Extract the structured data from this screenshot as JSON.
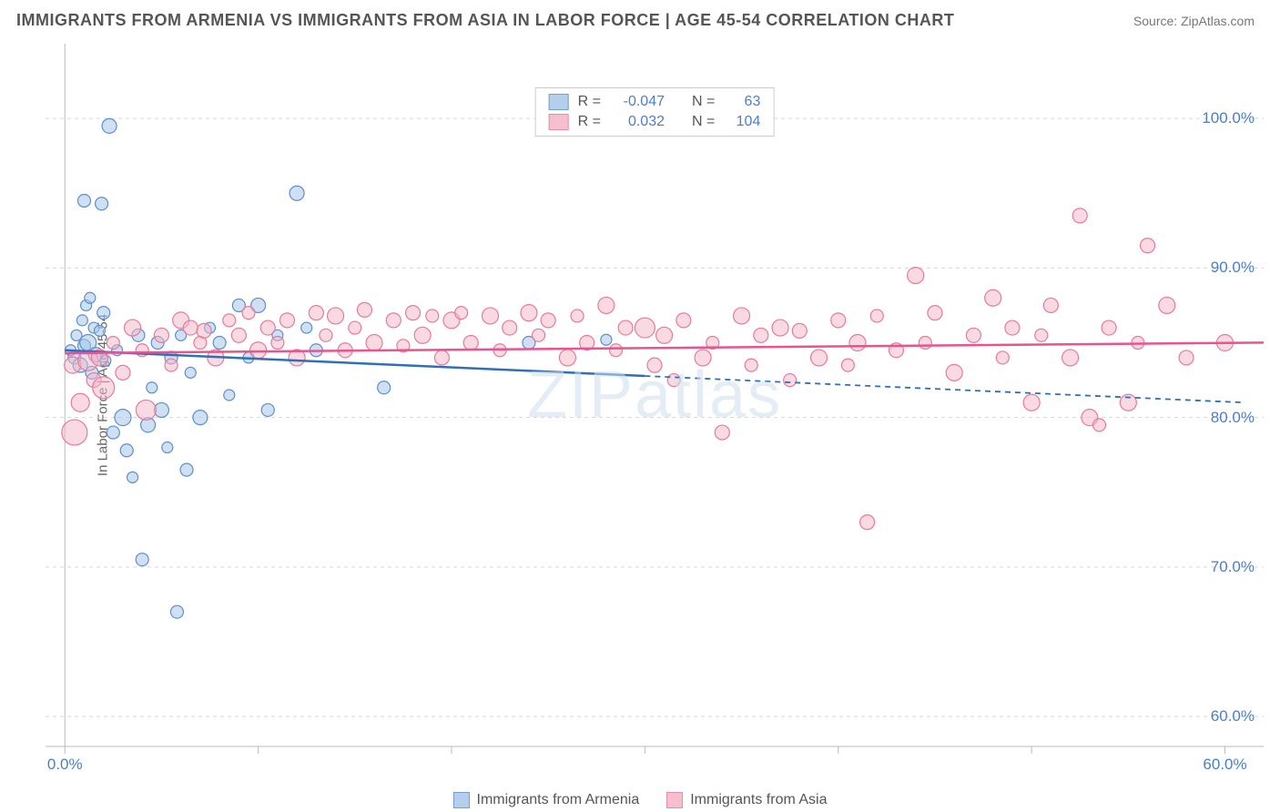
{
  "title": "IMMIGRANTS FROM ARMENIA VS IMMIGRANTS FROM ASIA IN LABOR FORCE | AGE 45-54 CORRELATION CHART",
  "source": "Source: ZipAtlas.com",
  "watermark": "ZIPatlas",
  "y_axis": {
    "label": "In Labor Force | Age 45-54",
    "ticks": [
      60.0,
      70.0,
      80.0,
      90.0,
      100.0
    ],
    "tick_labels": [
      "60.0%",
      "70.0%",
      "80.0%",
      "90.0%",
      "100.0%"
    ],
    "min": 58,
    "max": 105
  },
  "x_axis": {
    "ticks": [
      0.0,
      60.0
    ],
    "tick_labels": [
      "0.0%",
      "60.0%"
    ],
    "minor_ticks": [
      10,
      20,
      30,
      40,
      50
    ],
    "min": -1,
    "max": 62
  },
  "grid_color": "#d8d8d8",
  "axis_color": "#bbbbbb",
  "background_color": "#ffffff",
  "label_color": "#4a7fc8",
  "series": [
    {
      "name": "Immigrants from Armenia",
      "fill": "#a7c7e8",
      "stroke": "#5b8fd0",
      "fill_opacity": 0.55,
      "line_color": "#2f6fb8",
      "trend": {
        "y_start": 84.5,
        "y_end": 81.0,
        "solid_until": 30
      },
      "stats": {
        "R": "-0.047",
        "N": "63"
      },
      "points": [
        {
          "x": 0.3,
          "y": 84.5,
          "r": 6
        },
        {
          "x": 0.5,
          "y": 84.0,
          "r": 7
        },
        {
          "x": 0.6,
          "y": 85.5,
          "r": 6
        },
        {
          "x": 0.8,
          "y": 83.5,
          "r": 8
        },
        {
          "x": 0.9,
          "y": 86.5,
          "r": 6
        },
        {
          "x": 1.0,
          "y": 84.8,
          "r": 7
        },
        {
          "x": 1.1,
          "y": 87.5,
          "r": 6
        },
        {
          "x": 1.2,
          "y": 85.0,
          "r": 9
        },
        {
          "x": 1.3,
          "y": 88.0,
          "r": 6
        },
        {
          "x": 1.4,
          "y": 83.0,
          "r": 7
        },
        {
          "x": 1.5,
          "y": 86.0,
          "r": 6
        },
        {
          "x": 1.6,
          "y": 84.2,
          "r": 8
        },
        {
          "x": 1.8,
          "y": 85.8,
          "r": 6
        },
        {
          "x": 2.0,
          "y": 87.0,
          "r": 7
        },
        {
          "x": 2.1,
          "y": 83.8,
          "r": 6
        },
        {
          "x": 2.3,
          "y": 99.5,
          "r": 8
        },
        {
          "x": 1.0,
          "y": 94.5,
          "r": 7
        },
        {
          "x": 1.9,
          "y": 94.3,
          "r": 7
        },
        {
          "x": 2.5,
          "y": 79.0,
          "r": 7
        },
        {
          "x": 2.7,
          "y": 84.5,
          "r": 6
        },
        {
          "x": 3.0,
          "y": 80.0,
          "r": 9
        },
        {
          "x": 3.2,
          "y": 77.8,
          "r": 7
        },
        {
          "x": 3.5,
          "y": 76.0,
          "r": 6
        },
        {
          "x": 3.8,
          "y": 85.5,
          "r": 7
        },
        {
          "x": 4.0,
          "y": 70.5,
          "r": 7
        },
        {
          "x": 4.3,
          "y": 79.5,
          "r": 8
        },
        {
          "x": 4.5,
          "y": 82.0,
          "r": 6
        },
        {
          "x": 4.8,
          "y": 85.0,
          "r": 7
        },
        {
          "x": 5.0,
          "y": 80.5,
          "r": 8
        },
        {
          "x": 5.3,
          "y": 78.0,
          "r": 6
        },
        {
          "x": 5.5,
          "y": 84.0,
          "r": 7
        },
        {
          "x": 5.8,
          "y": 67.0,
          "r": 7
        },
        {
          "x": 6.0,
          "y": 85.5,
          "r": 6
        },
        {
          "x": 6.3,
          "y": 76.5,
          "r": 7
        },
        {
          "x": 6.5,
          "y": 83.0,
          "r": 6
        },
        {
          "x": 7.0,
          "y": 80.0,
          "r": 8
        },
        {
          "x": 7.5,
          "y": 86.0,
          "r": 6
        },
        {
          "x": 8.0,
          "y": 85.0,
          "r": 7
        },
        {
          "x": 8.5,
          "y": 81.5,
          "r": 6
        },
        {
          "x": 9.0,
          "y": 87.5,
          "r": 7
        },
        {
          "x": 9.5,
          "y": 84.0,
          "r": 6
        },
        {
          "x": 10.0,
          "y": 87.5,
          "r": 8
        },
        {
          "x": 10.5,
          "y": 80.5,
          "r": 7
        },
        {
          "x": 11.0,
          "y": 85.5,
          "r": 6
        },
        {
          "x": 12.0,
          "y": 95.0,
          "r": 8
        },
        {
          "x": 12.5,
          "y": 86.0,
          "r": 6
        },
        {
          "x": 13.0,
          "y": 84.5,
          "r": 7
        },
        {
          "x": 16.5,
          "y": 82.0,
          "r": 7
        },
        {
          "x": 24.0,
          "y": 85.0,
          "r": 7
        },
        {
          "x": 28.0,
          "y": 85.2,
          "r": 6
        }
      ]
    },
    {
      "name": "Immigrants from Asia",
      "fill": "#f5b5c5",
      "stroke": "#e77a9a",
      "fill_opacity": 0.5,
      "line_color": "#e9538e",
      "trend": {
        "y_start": 84.3,
        "y_end": 85.0,
        "solid_until": 62
      },
      "stats": {
        "R": "0.032",
        "N": "104"
      },
      "points": [
        {
          "x": 0.4,
          "y": 83.5,
          "r": 9
        },
        {
          "x": 0.5,
          "y": 79.0,
          "r": 14
        },
        {
          "x": 0.8,
          "y": 81.0,
          "r": 10
        },
        {
          "x": 1.2,
          "y": 83.8,
          "r": 11
        },
        {
          "x": 1.5,
          "y": 82.5,
          "r": 8
        },
        {
          "x": 1.8,
          "y": 84.0,
          "r": 9
        },
        {
          "x": 2.0,
          "y": 82.0,
          "r": 12
        },
        {
          "x": 2.5,
          "y": 85.0,
          "r": 7
        },
        {
          "x": 3.0,
          "y": 83.0,
          "r": 8
        },
        {
          "x": 3.5,
          "y": 86.0,
          "r": 9
        },
        {
          "x": 4.0,
          "y": 84.5,
          "r": 7
        },
        {
          "x": 4.2,
          "y": 80.5,
          "r": 11
        },
        {
          "x": 5.0,
          "y": 85.5,
          "r": 8
        },
        {
          "x": 5.5,
          "y": 83.5,
          "r": 7
        },
        {
          "x": 6.0,
          "y": 86.5,
          "r": 9
        },
        {
          "x": 6.5,
          "y": 86.0,
          "r": 8
        },
        {
          "x": 7.0,
          "y": 85.0,
          "r": 7
        },
        {
          "x": 7.2,
          "y": 85.8,
          "r": 8
        },
        {
          "x": 7.8,
          "y": 84.0,
          "r": 9
        },
        {
          "x": 8.5,
          "y": 86.5,
          "r": 7
        },
        {
          "x": 9.0,
          "y": 85.5,
          "r": 8
        },
        {
          "x": 9.5,
          "y": 87.0,
          "r": 7
        },
        {
          "x": 10.0,
          "y": 84.5,
          "r": 9
        },
        {
          "x": 10.5,
          "y": 86.0,
          "r": 8
        },
        {
          "x": 11.0,
          "y": 85.0,
          "r": 7
        },
        {
          "x": 11.5,
          "y": 86.5,
          "r": 8
        },
        {
          "x": 12.0,
          "y": 84.0,
          "r": 9
        },
        {
          "x": 13.0,
          "y": 87.0,
          "r": 8
        },
        {
          "x": 13.5,
          "y": 85.5,
          "r": 7
        },
        {
          "x": 14.0,
          "y": 86.8,
          "r": 9
        },
        {
          "x": 14.5,
          "y": 84.5,
          "r": 8
        },
        {
          "x": 15.0,
          "y": 86.0,
          "r": 7
        },
        {
          "x": 15.5,
          "y": 87.2,
          "r": 8
        },
        {
          "x": 16.0,
          "y": 85.0,
          "r": 9
        },
        {
          "x": 17.0,
          "y": 86.5,
          "r": 8
        },
        {
          "x": 17.5,
          "y": 84.8,
          "r": 7
        },
        {
          "x": 18.0,
          "y": 87.0,
          "r": 8
        },
        {
          "x": 18.5,
          "y": 85.5,
          "r": 9
        },
        {
          "x": 19.0,
          "y": 86.8,
          "r": 7
        },
        {
          "x": 19.5,
          "y": 84.0,
          "r": 8
        },
        {
          "x": 20.0,
          "y": 86.5,
          "r": 9
        },
        {
          "x": 20.5,
          "y": 87.0,
          "r": 7
        },
        {
          "x": 21.0,
          "y": 85.0,
          "r": 8
        },
        {
          "x": 22.0,
          "y": 86.8,
          "r": 9
        },
        {
          "x": 22.5,
          "y": 84.5,
          "r": 7
        },
        {
          "x": 23.0,
          "y": 86.0,
          "r": 8
        },
        {
          "x": 24.0,
          "y": 87.0,
          "r": 9
        },
        {
          "x": 24.5,
          "y": 85.5,
          "r": 7
        },
        {
          "x": 25.0,
          "y": 86.5,
          "r": 8
        },
        {
          "x": 26.0,
          "y": 84.0,
          "r": 9
        },
        {
          "x": 26.5,
          "y": 86.8,
          "r": 7
        },
        {
          "x": 27.0,
          "y": 85.0,
          "r": 8
        },
        {
          "x": 28.0,
          "y": 87.5,
          "r": 9
        },
        {
          "x": 28.5,
          "y": 84.5,
          "r": 7
        },
        {
          "x": 29.0,
          "y": 86.0,
          "r": 8
        },
        {
          "x": 30.0,
          "y": 86.0,
          "r": 11
        },
        {
          "x": 30.5,
          "y": 83.5,
          "r": 8
        },
        {
          "x": 31.0,
          "y": 85.5,
          "r": 9
        },
        {
          "x": 31.5,
          "y": 82.5,
          "r": 7
        },
        {
          "x": 32.0,
          "y": 86.5,
          "r": 8
        },
        {
          "x": 33.0,
          "y": 84.0,
          "r": 9
        },
        {
          "x": 33.5,
          "y": 85.0,
          "r": 7
        },
        {
          "x": 34.0,
          "y": 79.0,
          "r": 8
        },
        {
          "x": 35.0,
          "y": 86.8,
          "r": 9
        },
        {
          "x": 35.5,
          "y": 83.5,
          "r": 7
        },
        {
          "x": 36.0,
          "y": 85.5,
          "r": 8
        },
        {
          "x": 37.0,
          "y": 86.0,
          "r": 9
        },
        {
          "x": 37.5,
          "y": 82.5,
          "r": 7
        },
        {
          "x": 38.0,
          "y": 85.8,
          "r": 8
        },
        {
          "x": 39.0,
          "y": 84.0,
          "r": 9
        },
        {
          "x": 40.0,
          "y": 86.5,
          "r": 8
        },
        {
          "x": 40.5,
          "y": 83.5,
          "r": 7
        },
        {
          "x": 41.0,
          "y": 85.0,
          "r": 9
        },
        {
          "x": 41.5,
          "y": 73.0,
          "r": 8
        },
        {
          "x": 42.0,
          "y": 86.8,
          "r": 7
        },
        {
          "x": 43.0,
          " y": 84.5,
          "r": 8
        },
        {
          "x": 43.0,
          "y": 84.5,
          "r": 8
        },
        {
          "x": 44.0,
          "y": 89.5,
          "r": 9
        },
        {
          "x": 44.5,
          "y": 85.0,
          "r": 7
        },
        {
          "x": 45.0,
          "y": 87.0,
          "r": 8
        },
        {
          "x": 46.0,
          "y": 83.0,
          "r": 9
        },
        {
          "x": 47.0,
          "y": 85.5,
          "r": 8
        },
        {
          "x": 48.0,
          "y": 88.0,
          "r": 9
        },
        {
          "x": 48.5,
          "y": 84.0,
          "r": 7
        },
        {
          "x": 49.0,
          "y": 86.0,
          "r": 8
        },
        {
          "x": 50.0,
          "y": 81.0,
          "r": 9
        },
        {
          "x": 50.5,
          "y": 85.5,
          "r": 7
        },
        {
          "x": 51.0,
          "y": 87.5,
          "r": 8
        },
        {
          "x": 52.0,
          "y": 84.0,
          "r": 9
        },
        {
          "x": 52.5,
          "y": 93.5,
          "r": 8
        },
        {
          "x": 53.0,
          "y": 80.0,
          "r": 9
        },
        {
          "x": 53.5,
          "y": 79.5,
          "r": 7
        },
        {
          "x": 54.0,
          "y": 86.0,
          "r": 8
        },
        {
          "x": 55.0,
          "y": 81.0,
          "r": 9
        },
        {
          "x": 55.5,
          "y": 85.0,
          "r": 7
        },
        {
          "x": 56.0,
          "y": 91.5,
          "r": 8
        },
        {
          "x": 57.0,
          "y": 87.5,
          "r": 9
        },
        {
          "x": 58.0,
          "y": 84.0,
          "r": 8
        },
        {
          "x": 60.0,
          "y": 85.0,
          "r": 9
        }
      ]
    }
  ],
  "legend": {
    "stat_r_label": "R =",
    "stat_n_label": "N ="
  }
}
